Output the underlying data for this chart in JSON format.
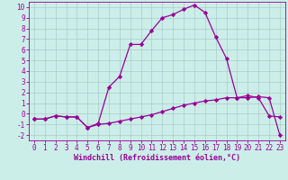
{
  "xlabel": "Windchill (Refroidissement éolien,°C)",
  "line1_x": [
    0,
    1,
    2,
    3,
    4,
    5,
    6,
    7,
    8,
    9,
    10,
    11,
    12,
    13,
    14,
    15,
    16,
    17,
    18,
    19,
    20,
    21,
    22,
    23
  ],
  "line1_y": [
    -0.5,
    -0.5,
    -0.2,
    -0.3,
    -0.3,
    -1.3,
    -0.9,
    2.5,
    3.5,
    6.5,
    6.5,
    7.8,
    9.0,
    9.3,
    9.8,
    10.2,
    9.5,
    7.2,
    5.2,
    1.5,
    1.7,
    1.5,
    -0.2,
    -0.3
  ],
  "line2_x": [
    0,
    1,
    2,
    3,
    4,
    5,
    6,
    7,
    8,
    9,
    10,
    11,
    12,
    13,
    14,
    15,
    16,
    17,
    18,
    19,
    20,
    21,
    22,
    23
  ],
  "line2_y": [
    -0.5,
    -0.5,
    -0.2,
    -0.3,
    -0.3,
    -1.3,
    -1.0,
    -0.9,
    -0.7,
    -0.5,
    -0.3,
    -0.1,
    0.2,
    0.5,
    0.8,
    1.0,
    1.2,
    1.3,
    1.5,
    1.5,
    1.5,
    1.6,
    1.5,
    -2.0
  ],
  "line_color": "#990099",
  "marker": "D",
  "marker_size": 2.2,
  "xlim": [
    -0.5,
    23.5
  ],
  "ylim": [
    -2.5,
    10.5
  ],
  "yticks": [
    -2,
    -1,
    0,
    1,
    2,
    3,
    4,
    5,
    6,
    7,
    8,
    9,
    10
  ],
  "xticks": [
    0,
    1,
    2,
    3,
    4,
    5,
    6,
    7,
    8,
    9,
    10,
    11,
    12,
    13,
    14,
    15,
    16,
    17,
    18,
    19,
    20,
    21,
    22,
    23
  ],
  "bg_color": "#cceee8",
  "grid_color": "#aacccc",
  "line_width": 0.9,
  "tick_fontsize": 5.5,
  "xlabel_fontsize": 6.0
}
